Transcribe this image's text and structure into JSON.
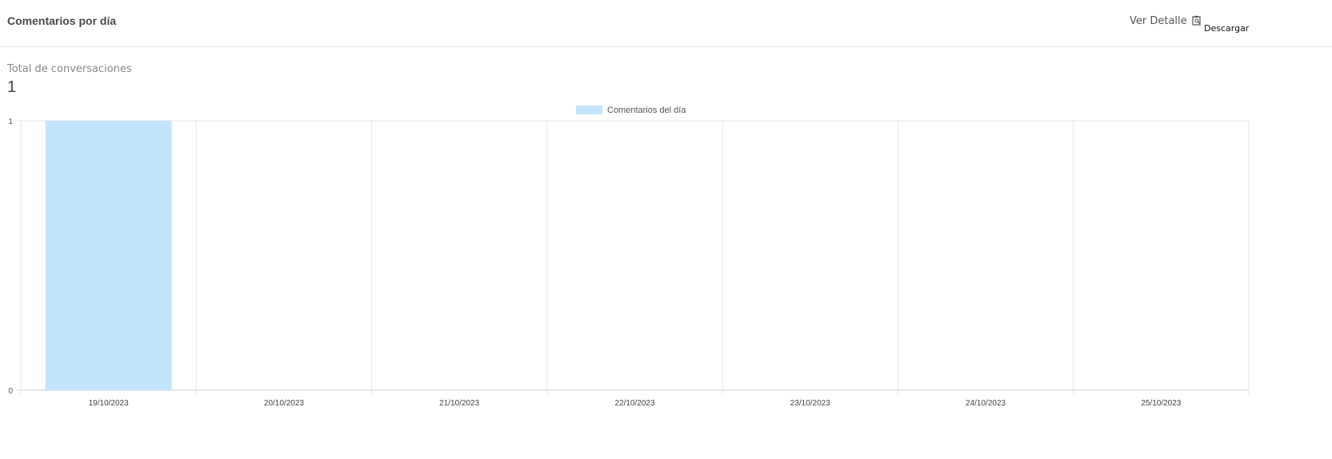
{
  "header": {
    "title": "Comentarios por día",
    "detail_label": "Ver Detalle",
    "detail_icon": "clipboard-search-icon",
    "download_label": "Descargar"
  },
  "summary": {
    "label": "Total de conversaciones",
    "value": "1"
  },
  "chart_data": {
    "type": "bar",
    "categories": [
      "19/10/2023",
      "20/10/2023",
      "21/10/2023",
      "22/10/2023",
      "23/10/2023",
      "24/10/2023",
      "25/10/2023"
    ],
    "series": [
      {
        "name": "Comentarios del día",
        "values": [
          1,
          0,
          0,
          0,
          0,
          0,
          0
        ],
        "color": "#c3e5fc"
      }
    ],
    "ylim": [
      0,
      1
    ],
    "yticks": [
      "0",
      "1"
    ],
    "grid": true,
    "legend": "top-center"
  }
}
